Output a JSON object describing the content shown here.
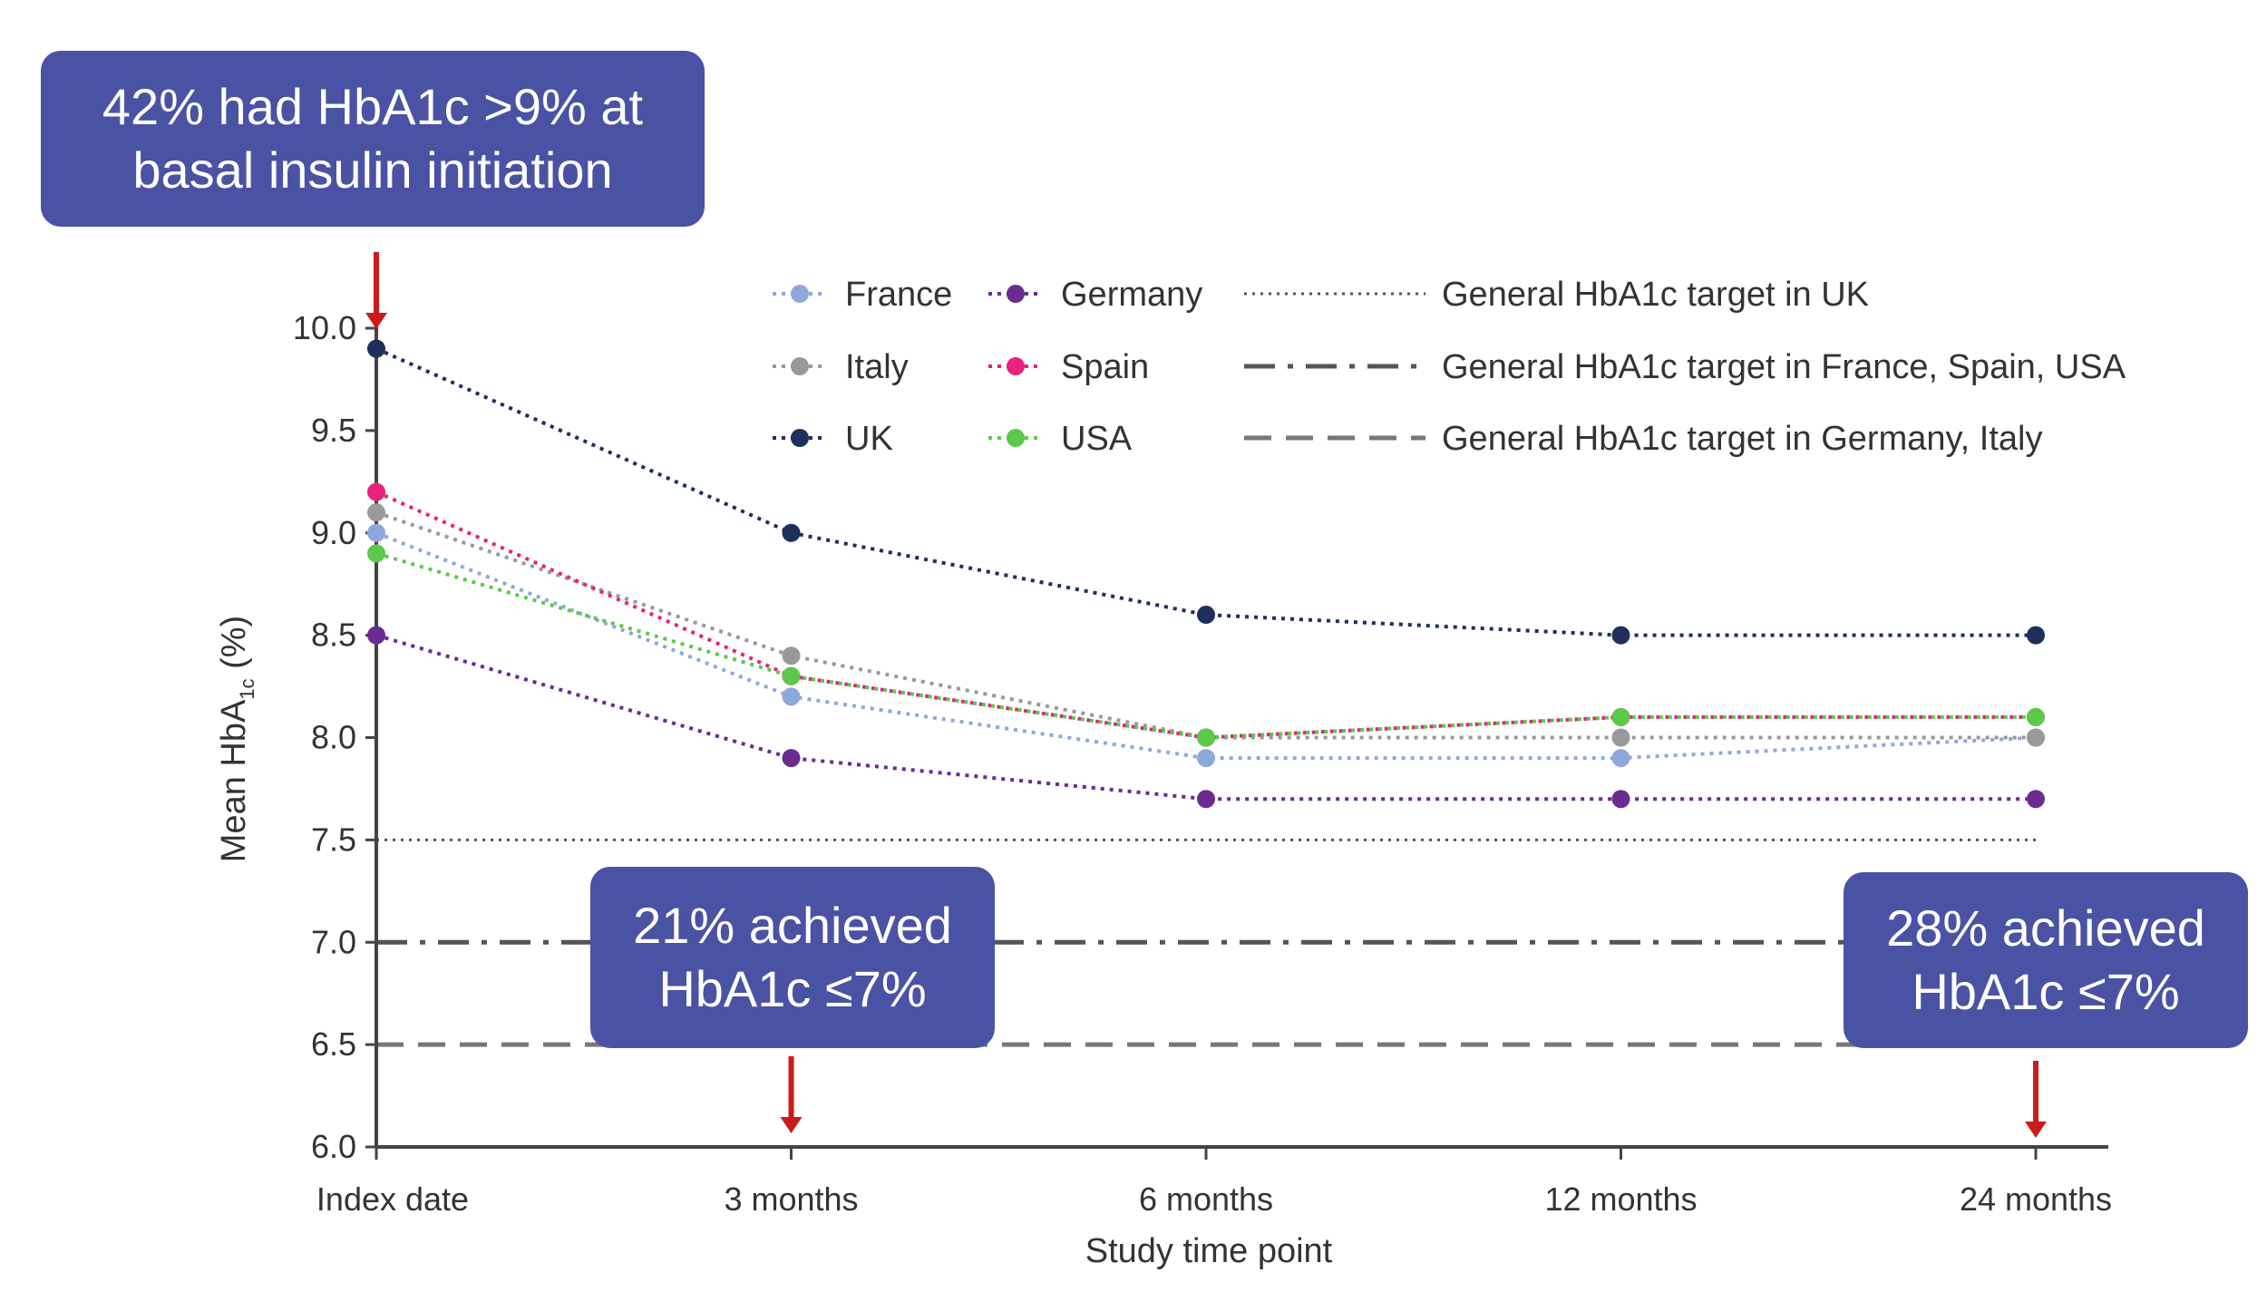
{
  "chart_data": {
    "type": "line",
    "title": "",
    "xlabel": "Study time point",
    "ylabel_main": "Mean HbA",
    "ylabel_sub": "1c",
    "ylabel_unit": " (%)",
    "categories": [
      "Index date",
      "3 months",
      "6 months",
      "12 months",
      "24 months"
    ],
    "ylim": [
      6.0,
      10.0
    ],
    "yticks": [
      "10.0",
      "9.5",
      "9.0",
      "8.5",
      "8.0",
      "7.5",
      "7.0",
      "6.5",
      "6.0"
    ],
    "series": [
      {
        "name": "France",
        "color": "#8fa8dc",
        "values": [
          9.0,
          8.2,
          7.9,
          7.9,
          8.0
        ]
      },
      {
        "name": "Germany",
        "color": "#6a2c91",
        "values": [
          8.5,
          7.9,
          7.7,
          7.7,
          7.7
        ]
      },
      {
        "name": "Italy",
        "color": "#999999",
        "values": [
          9.1,
          8.4,
          8.0,
          8.0,
          8.0
        ]
      },
      {
        "name": "Spain",
        "color": "#e8227d",
        "values": [
          9.2,
          8.3,
          8.0,
          8.1,
          8.1
        ]
      },
      {
        "name": "UK",
        "color": "#1f2f5c",
        "values": [
          9.9,
          9.0,
          8.6,
          8.5,
          8.5
        ]
      },
      {
        "name": "USA",
        "color": "#5cc94a",
        "values": [
          8.9,
          8.3,
          8.0,
          8.1,
          8.1
        ]
      }
    ],
    "reference_lines": [
      {
        "name": "General HbA1c target in UK",
        "value": 7.5,
        "style": "dotted",
        "color": "#555555"
      },
      {
        "name": "General HbA1c target in France, Spain, USA",
        "value": 7.0,
        "style": "dashdot",
        "color": "#555555"
      },
      {
        "name": "General HbA1c target in Germany, Italy",
        "value": 6.5,
        "style": "dashed",
        "color": "#777777"
      }
    ],
    "legend_position": "top-right",
    "grid": false,
    "annotations": [
      {
        "text_lines": [
          "42% had HbA1c >9% at",
          "basal insulin initiation"
        ],
        "target_category": "Index date"
      },
      {
        "text_lines": [
          "21% achieved",
          "HbA1c ≤7%"
        ],
        "target_category": "3 months"
      },
      {
        "text_lines": [
          "28% achieved",
          "HbA1c ≤7%"
        ],
        "target_category": "24 months"
      }
    ],
    "arrow_color": "#cc1a1a",
    "callout_color": "#4a52a4"
  }
}
